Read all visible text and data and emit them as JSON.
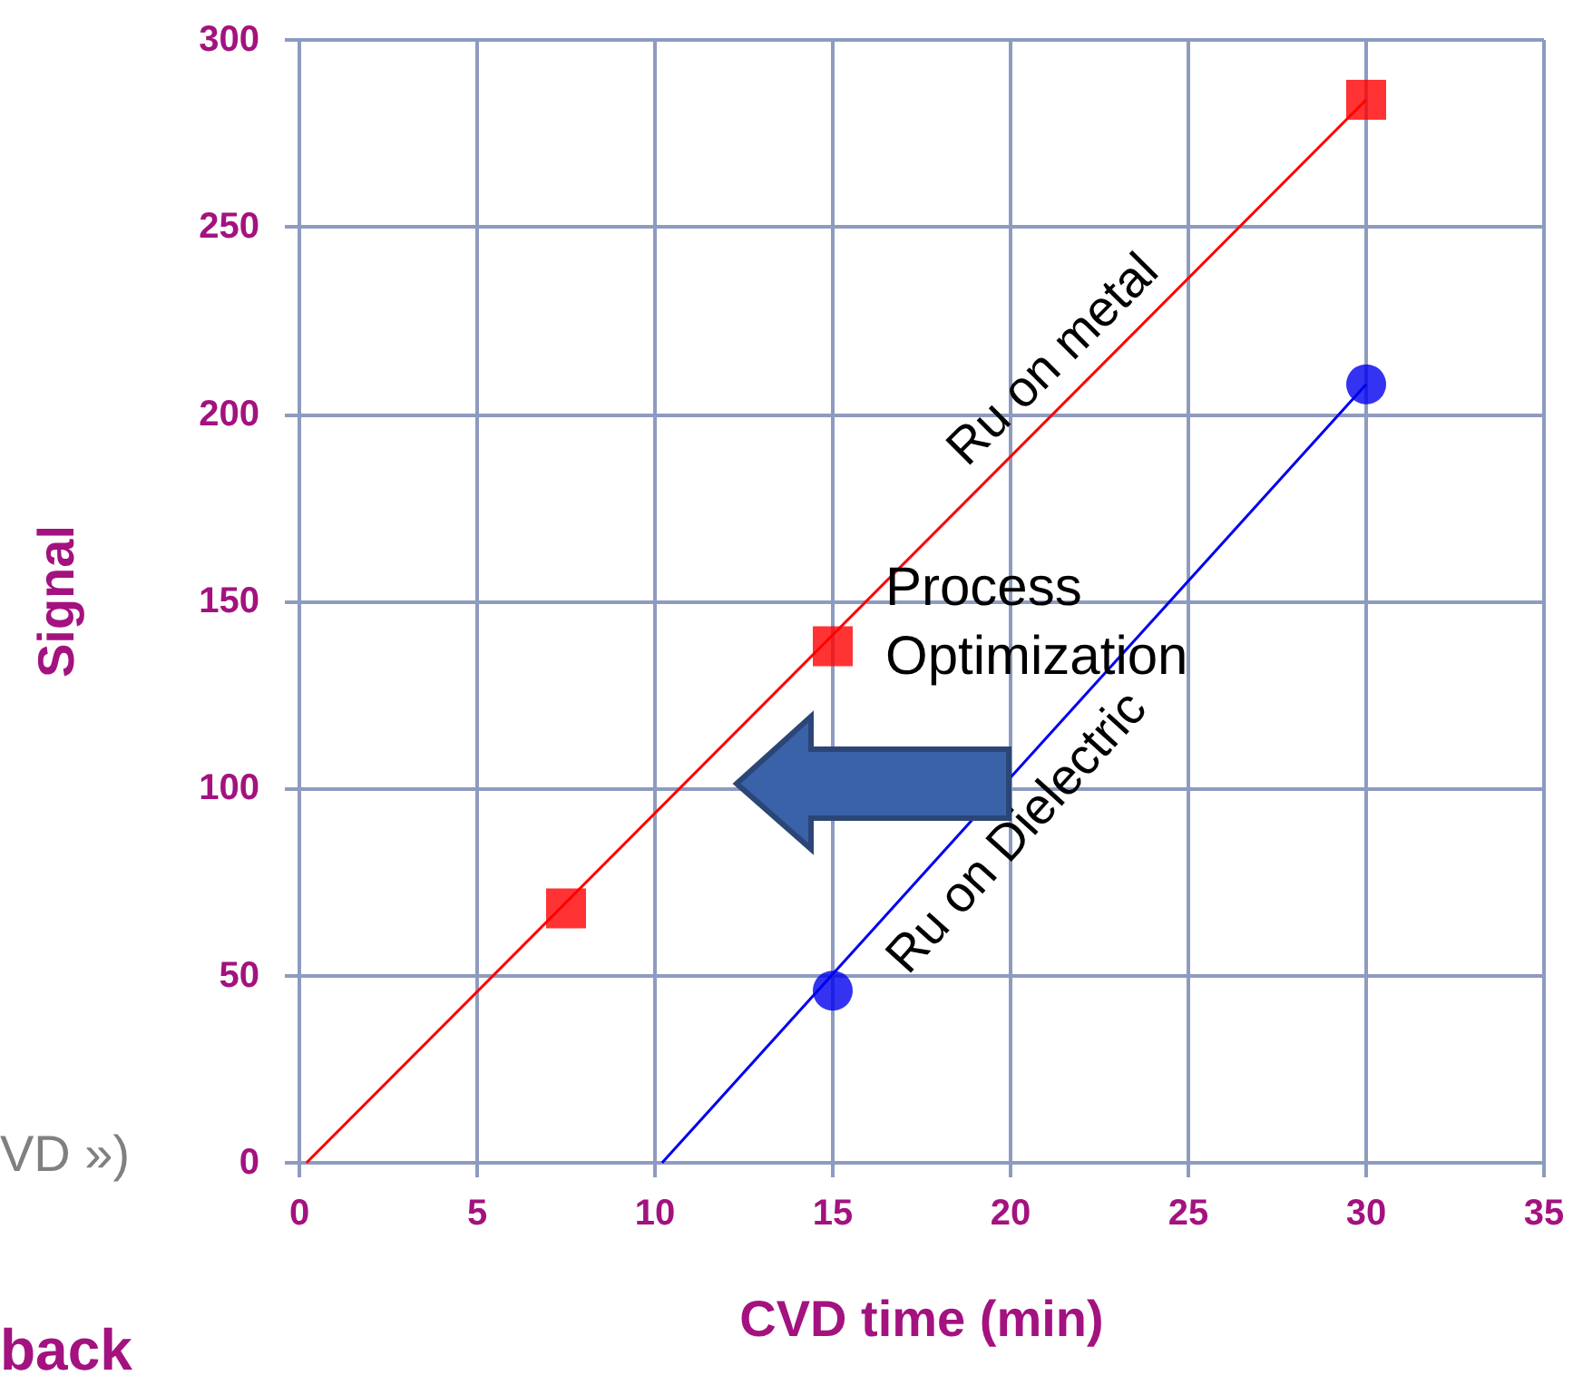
{
  "chart_data": {
    "type": "scatter",
    "xlabel": "CVD time (min)",
    "ylabel": "Signal",
    "xlim": [
      0,
      35
    ],
    "xticks": [
      0,
      5,
      10,
      15,
      20,
      25,
      30,
      35
    ],
    "ylim": [
      0,
      300
    ],
    "yticks": [
      0,
      50,
      100,
      150,
      200,
      250,
      300
    ],
    "grid": true,
    "legend": false,
    "series": [
      {
        "marker": "square",
        "color": "#ff0000",
        "x": [
          7.5,
          15,
          30
        ],
        "values": [
          68,
          138,
          284
        ]
      },
      {
        "name": "Ru on metal",
        "type": "line",
        "marker": "none",
        "color": "#ff0000",
        "x": [
          0.2,
          30
        ],
        "values": [
          0,
          284
        ]
      },
      {
        "marker": "circle",
        "color": "#0000ee",
        "x": [
          15,
          30
        ],
        "values": [
          46,
          208
        ]
      },
      {
        "name": "Ru on Dielectric",
        "type": "line",
        "marker": "none",
        "color": "#0000ee",
        "x": [
          10.2,
          30
        ],
        "values": [
          0,
          208
        ]
      }
    ],
    "annotations": [
      "Process\nOptimization",
      "VD »)",
      "back"
    ]
  }
}
